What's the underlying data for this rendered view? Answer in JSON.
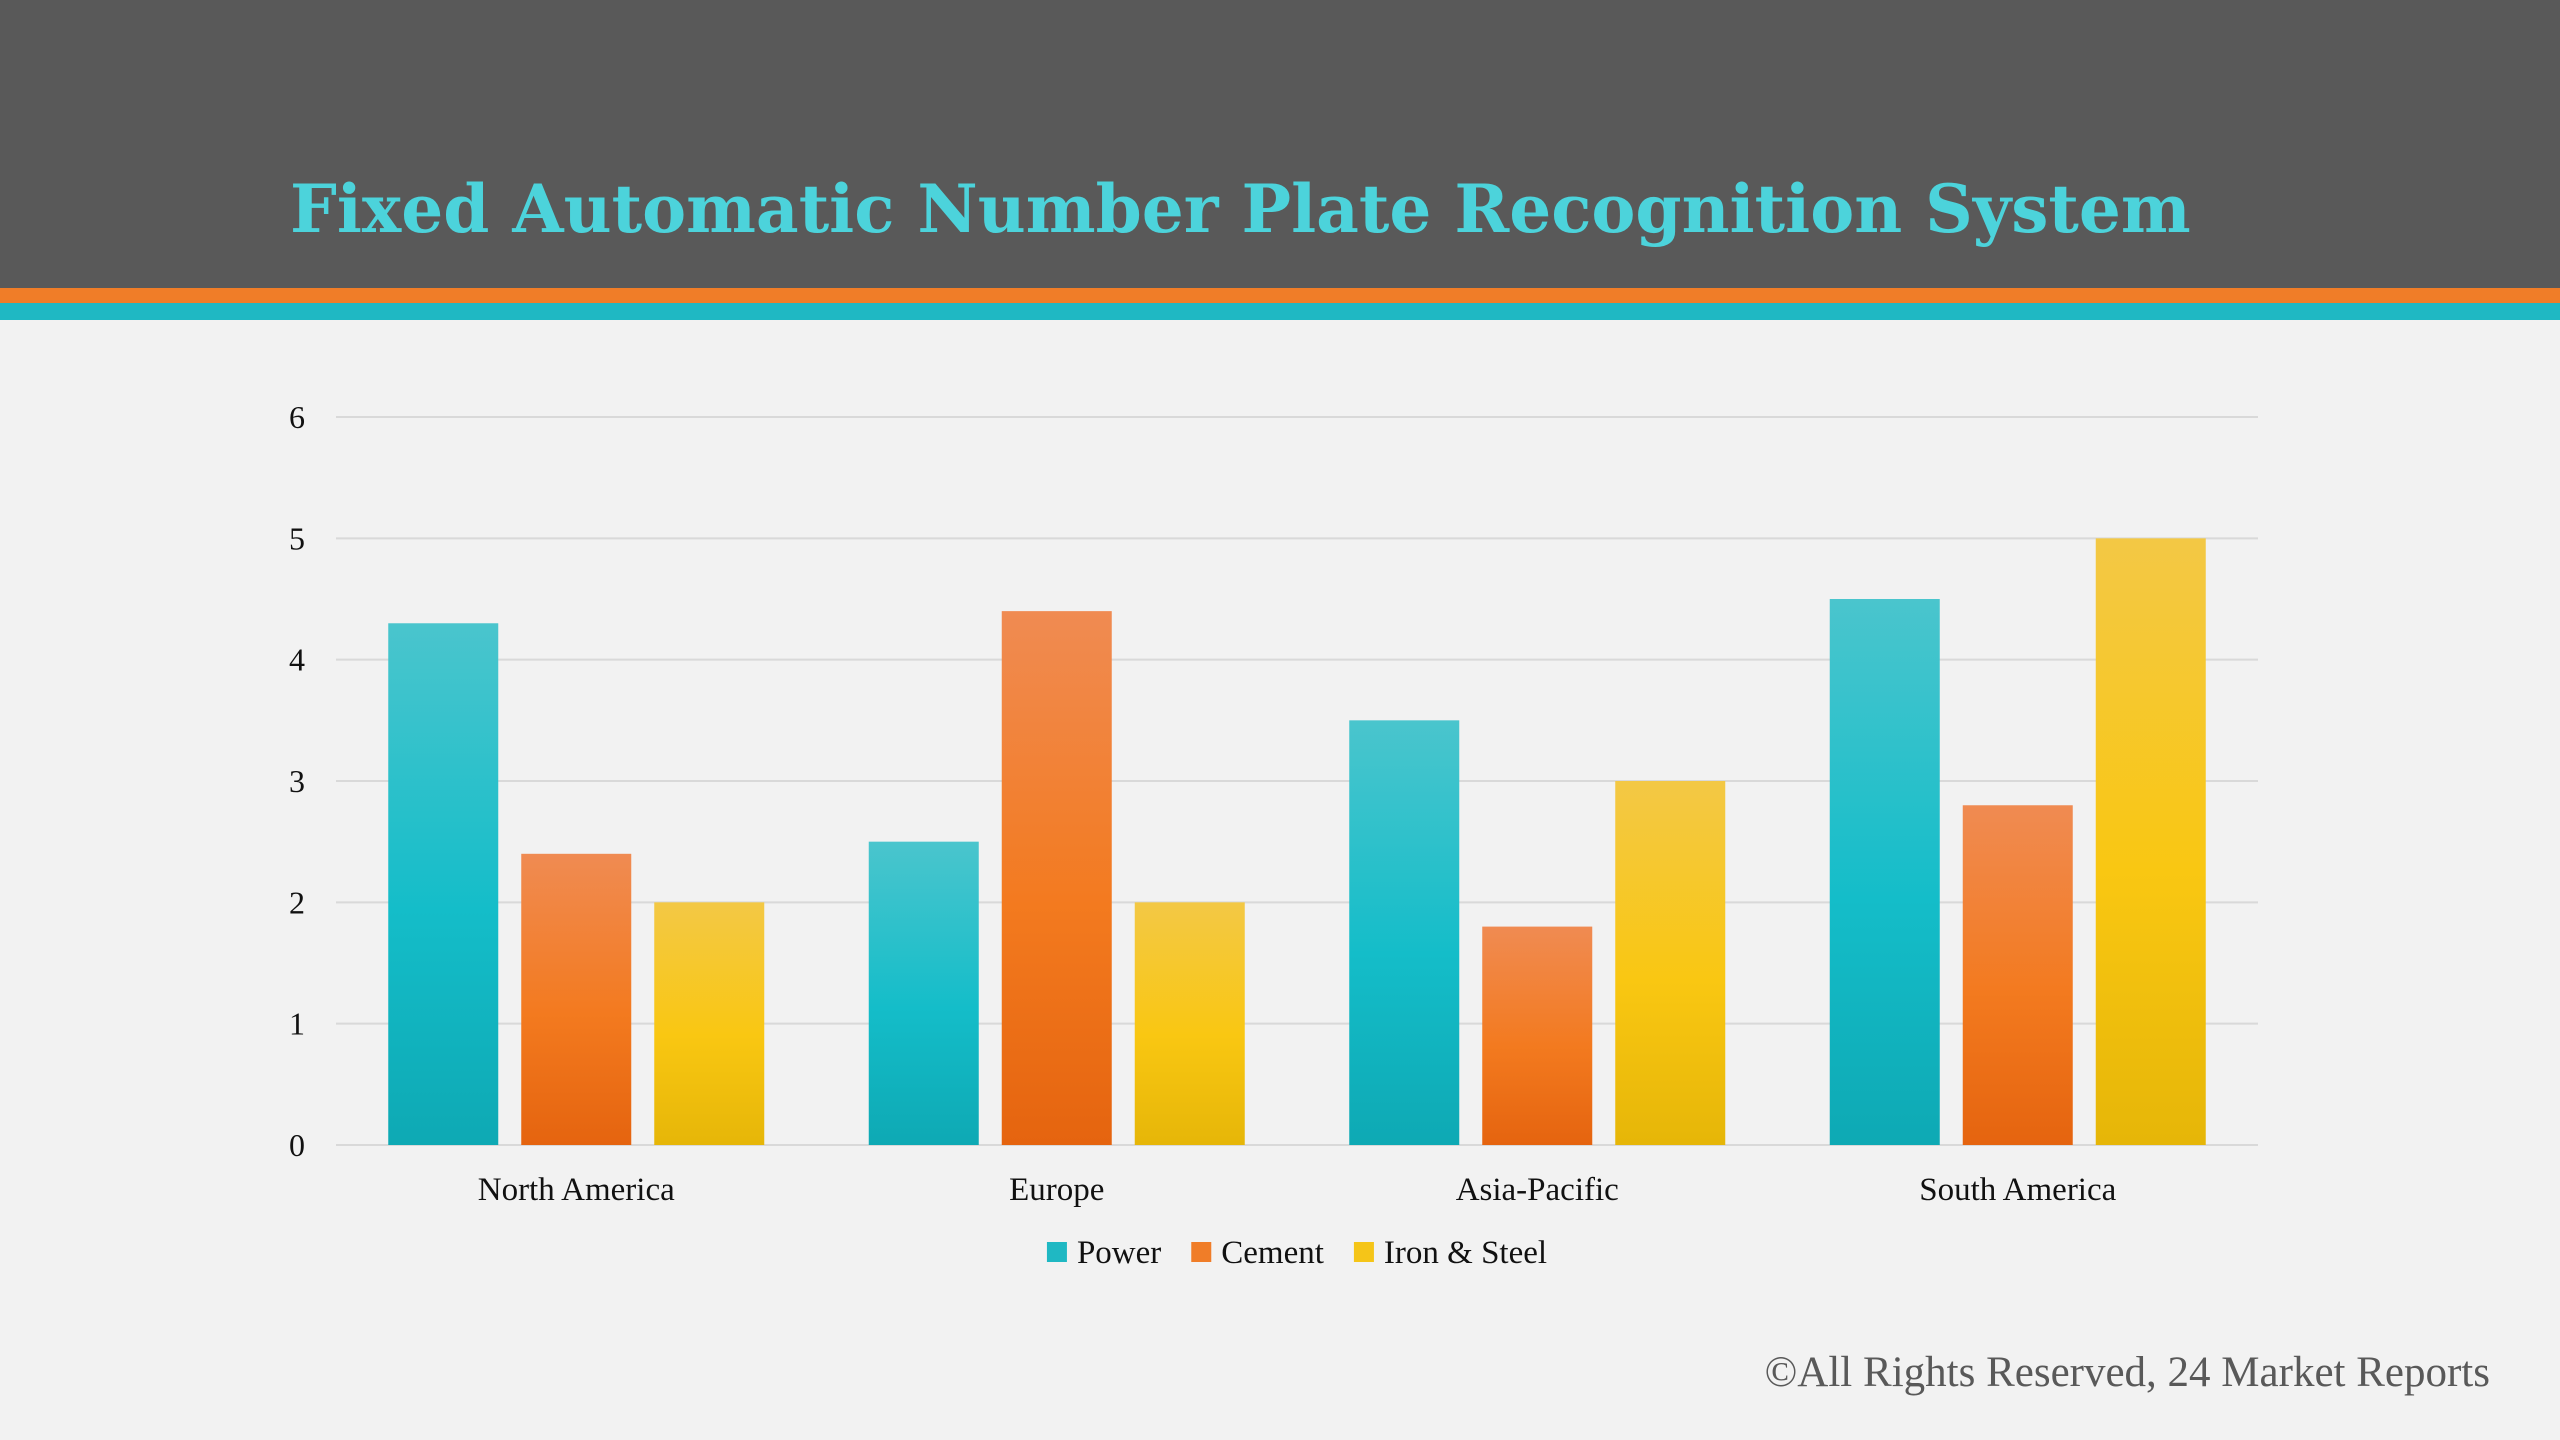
{
  "header": {
    "title": "Fixed Automatic Number Plate Recognition System"
  },
  "footer": {
    "text": "©All Rights Reserved, 24 Market Reports"
  },
  "colors": {
    "header_bg": "#595959",
    "title": "#4cd3db",
    "stripe_orange": "#f07d28",
    "stripe_teal": "#1fb8c3",
    "background": "#f2f2f2",
    "gridline": "#d9d9d9"
  },
  "chart_data": {
    "type": "bar",
    "title": "",
    "xlabel": "",
    "ylabel": "",
    "categories": [
      "North America",
      "Europe",
      "Asia-Pacific",
      "South America"
    ],
    "ylim": [
      0,
      6
    ],
    "yticks": [
      0,
      1,
      2,
      3,
      4,
      5,
      6
    ],
    "grid": true,
    "legend_position": "bottom",
    "series": [
      {
        "name": "Power",
        "values": [
          4.3,
          2.5,
          3.5,
          4.5
        ],
        "color": "#1fb8c3",
        "gradient": [
          "#4ac5cd",
          "#14bdc9",
          "#0ea9b4"
        ]
      },
      {
        "name": "Cement",
        "values": [
          2.4,
          4.4,
          1.8,
          2.8
        ],
        "color": "#f07d28",
        "gradient": [
          "#f08b52",
          "#f37a1f",
          "#e5640f"
        ]
      },
      {
        "name": "Iron & Steel",
        "values": [
          2.0,
          2.0,
          3.0,
          5.0
        ],
        "color": "#f5c518",
        "gradient": [
          "#f3c845",
          "#f9c712",
          "#e6b608"
        ]
      }
    ]
  }
}
